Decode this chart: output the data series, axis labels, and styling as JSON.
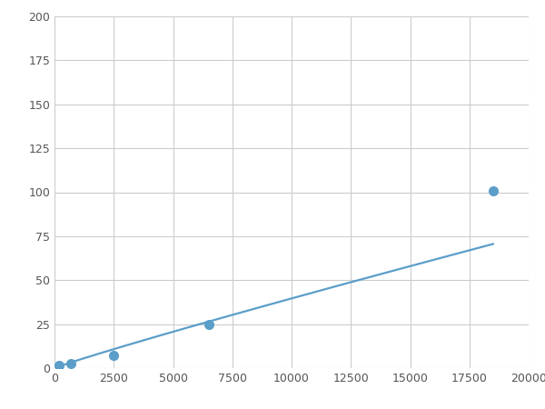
{
  "x_points": [
    200,
    700,
    2500,
    6500,
    18500
  ],
  "y_points": [
    1.5,
    2.5,
    7.0,
    25.0,
    101.0
  ],
  "line_color": "#5B9EC9",
  "marker_color": "#5B9EC9",
  "marker_size": 7,
  "line_width": 1.6,
  "xlim": [
    0,
    20000
  ],
  "ylim": [
    0,
    200
  ],
  "xticks": [
    0,
    2500,
    5000,
    7500,
    10000,
    12500,
    15000,
    17500,
    20000
  ],
  "yticks": [
    0,
    25,
    50,
    75,
    100,
    125,
    150,
    175,
    200
  ],
  "grid_color": "#cccccc",
  "background_color": "#ffffff",
  "fig_width": 6.0,
  "fig_height": 4.5,
  "dpi": 100
}
